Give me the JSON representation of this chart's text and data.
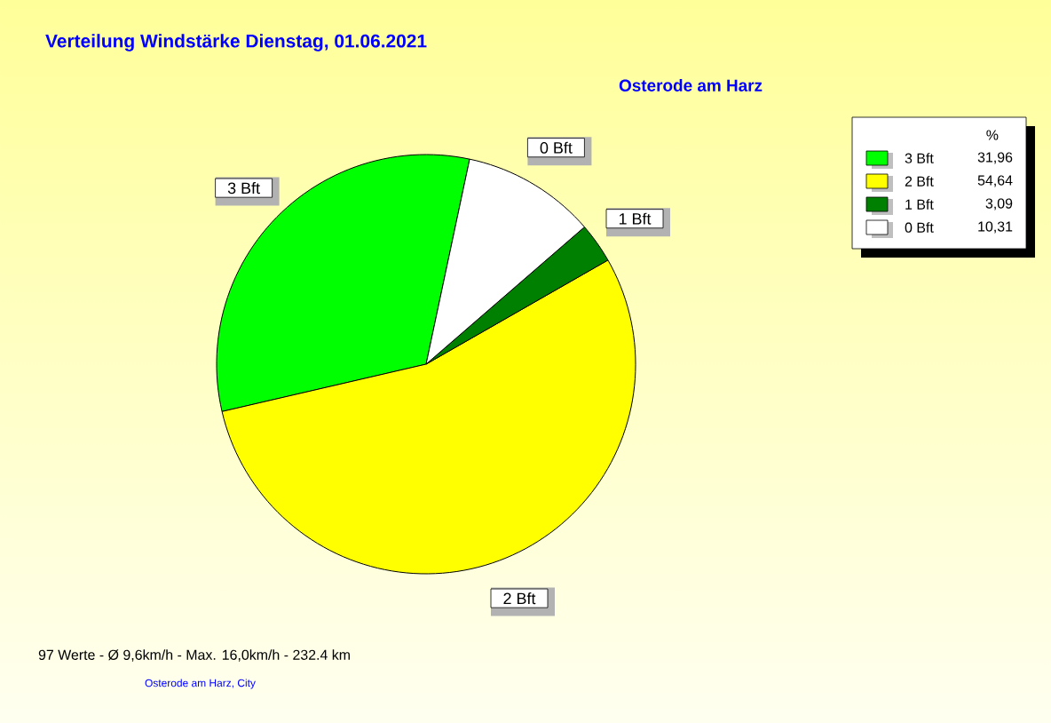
{
  "chart_data": {
    "type": "pie",
    "title": "Verteilung Windstärke  Dienstag, 01.06.2021",
    "subtitle": "Osterode am Harz",
    "legend_title": "%",
    "categories": [
      "3 Bft",
      "2 Bft",
      "1 Bft",
      "0 Bft"
    ],
    "values": [
      31.96,
      54.64,
      3.09,
      10.31
    ],
    "value_labels": [
      "31,96",
      "54,64",
      "3,09",
      "10,31"
    ],
    "colors": [
      "#00ff00",
      "#ffff00",
      "#008000",
      "#ffffff"
    ],
    "legend": "top right",
    "annotations": [
      "97 Werte  -  Ø 9,6km/h  -  Max. 16,0km/h  -  232.4 km",
      "Osterode am Harz, City"
    ]
  }
}
